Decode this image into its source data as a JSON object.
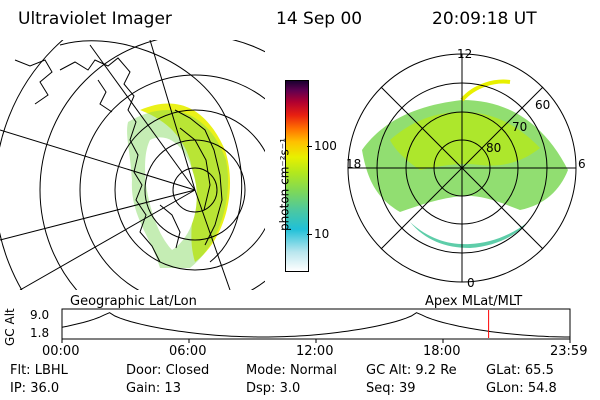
{
  "header": {
    "instrument": "Ultraviolet Imager",
    "date": "14 Sep 00",
    "time": "20:09:18 UT"
  },
  "colorbar": {
    "label": "photon cm⁻²s⁻¹",
    "ticks": [
      {
        "label": "100",
        "value": 100
      },
      {
        "label": "10",
        "value": 10
      }
    ],
    "colors": [
      "#ffffff",
      "#b9e6ee",
      "#20c0d8",
      "#4cc8a0",
      "#7ed858",
      "#b4e81c",
      "#e8f000",
      "#ffc000",
      "#ff7000",
      "#e82010",
      "#b00030",
      "#600050",
      "#1a0030"
    ]
  },
  "left_map": {
    "projection": "Geographic Lat/Lon",
    "colors": {
      "coast": "#000000",
      "grid": "#000000"
    }
  },
  "right_map": {
    "projection": "Apex MLat/MLT",
    "mlt_labels": [
      "12",
      "18",
      "6",
      "0"
    ],
    "mlat_labels": [
      "60",
      "70",
      "80"
    ]
  },
  "timeline": {
    "ylabel": "GC Alt",
    "ymax_label": "9.0",
    "ymin_label": "1.8",
    "x_ticks": [
      "00:00",
      "06:00",
      "12:00",
      "18:00",
      "23:59"
    ],
    "current_time_hours": 20.155,
    "marker_color": "#ff0000"
  },
  "status": {
    "row1": [
      {
        "key": "Flt:",
        "val": "LBHL"
      },
      {
        "key": "Door:",
        "val": "Closed"
      },
      {
        "key": "Mode:",
        "val": "Normal"
      },
      {
        "key": "GC Alt:",
        "val": "9.2 Re"
      },
      {
        "key": "GLat:",
        "val": "65.5"
      }
    ],
    "row2": [
      {
        "key": "IP:",
        "val": "36.0"
      },
      {
        "key": "Gain:",
        "val": "13"
      },
      {
        "key": "Dsp:",
        "val": "3.0"
      },
      {
        "key": "Seq:",
        "val": "39"
      },
      {
        "key": "GLon:",
        "val": "54.8"
      }
    ]
  }
}
